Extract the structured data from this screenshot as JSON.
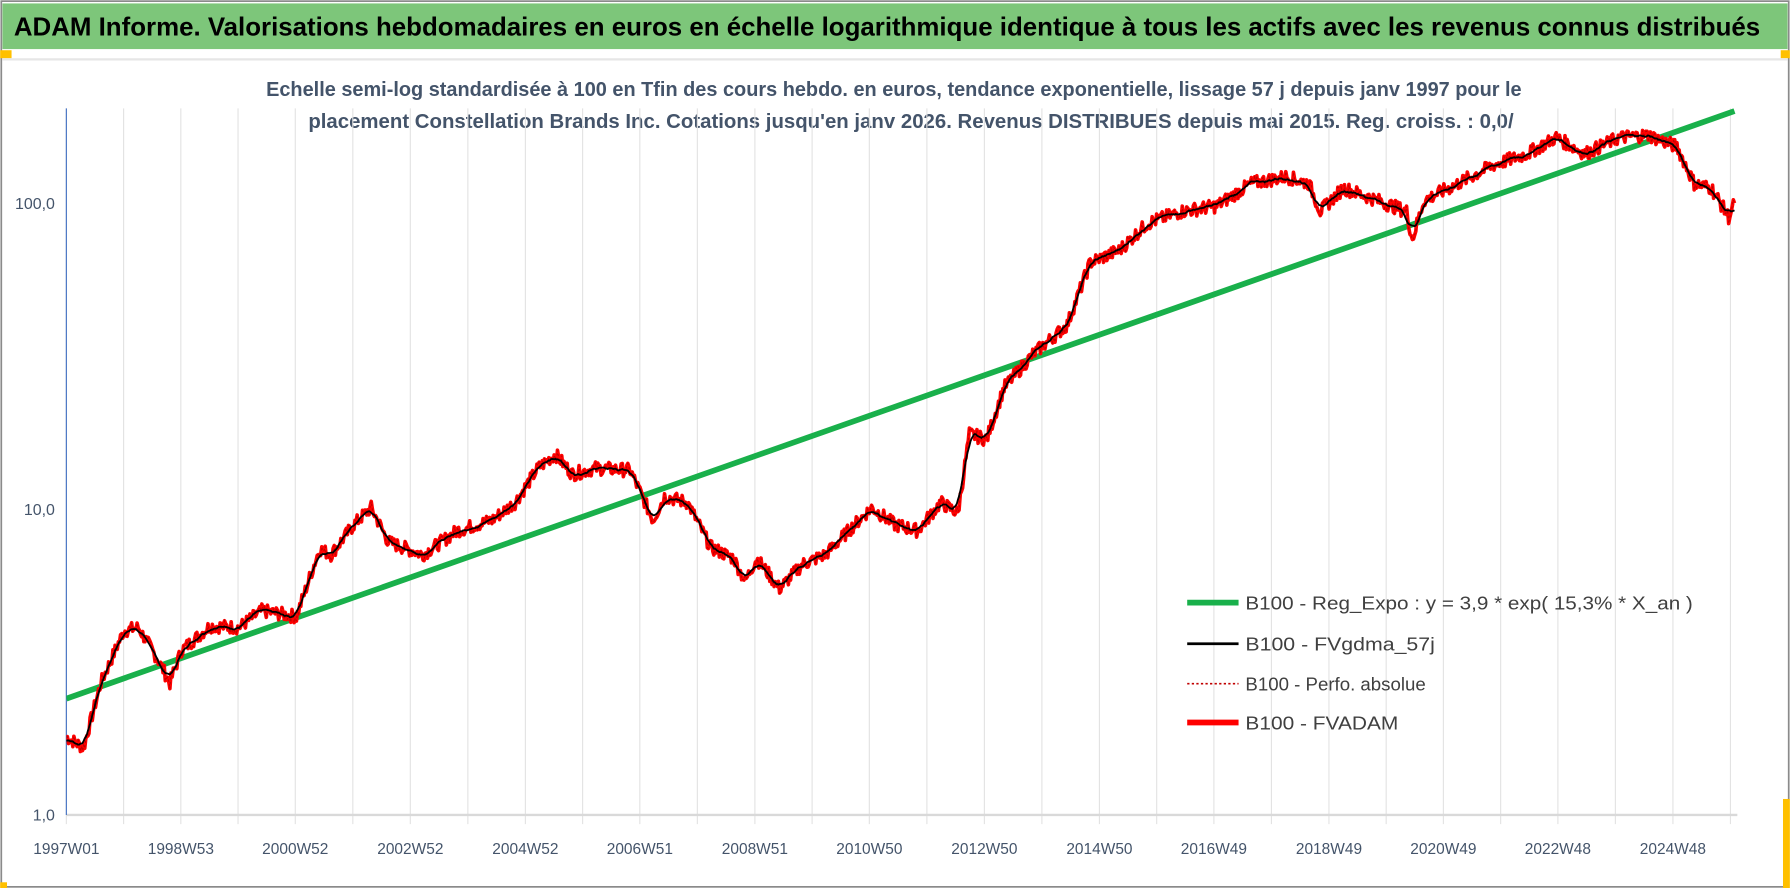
{
  "header": {
    "title": "ADAM Informe. Valorisations hebdomadaires en euros en échelle logarithmique identique à tous les actifs avec les revenus connus distribués"
  },
  "colors": {
    "title_bar": "#7dc67a",
    "trend": "#19b04b",
    "smooth": "#000000",
    "perfo": "#c00000",
    "fvadam": "#ff0000",
    "subtitle": "#44546a",
    "handles": "#ffc000"
  },
  "chart_data": {
    "type": "line",
    "title_line1": "Echelle semi-log standardisée à 100 en Tfin des cours hebdo. en euros, tendance exponentielle, lissage 57 j depuis janv 1997 pour le",
    "title_line2": "placement Constellation Brands Inc. Cotations jusqu'en janv 2026. Revenus DISTRIBUES depuis mai 2015. Reg. croiss. : 0,0/",
    "y_scale": "log",
    "ylim": [
      1,
      200
    ],
    "xlim": [
      1997.0,
      2026.05
    ],
    "grid": "vertical",
    "legend_position": "bottom-right",
    "y_ticks": [
      {
        "value": 1,
        "label": "1,0"
      },
      {
        "value": 10,
        "label": "10,0"
      },
      {
        "value": 100,
        "label": "100,0"
      }
    ],
    "x_ticks": [
      {
        "x": 1997.0,
        "label": "1997W01"
      },
      {
        "x": 1998.99,
        "label": "1998W53"
      },
      {
        "x": 2000.98,
        "label": "2000W52"
      },
      {
        "x": 2002.98,
        "label": "2002W52"
      },
      {
        "x": 2004.98,
        "label": "2004W52"
      },
      {
        "x": 2006.97,
        "label": "2006W51"
      },
      {
        "x": 2008.97,
        "label": "2008W51"
      },
      {
        "x": 2010.96,
        "label": "2010W50"
      },
      {
        "x": 2012.96,
        "label": "2012W50"
      },
      {
        "x": 2014.96,
        "label": "2014W50"
      },
      {
        "x": 2016.95,
        "label": "2016W49"
      },
      {
        "x": 2018.95,
        "label": "2018W49"
      },
      {
        "x": 2020.94,
        "label": "2020W49"
      },
      {
        "x": 2022.93,
        "label": "2022W48"
      },
      {
        "x": 2024.93,
        "label": "2024W48"
      }
    ],
    "series": [
      {
        "name": "B100 - Reg_Expo : y = 3,9 * exp( 15,3% *  X_an )",
        "x": [
          1997.0,
          2026.0
        ],
        "values": [
          2.4,
          200
        ]
      },
      {
        "name": "B100 - FVgdma_57j",
        "smoothing_of": "B100 - FVADAM"
      },
      {
        "name": "B100 - Perfo. absolue",
        "hidden_under": "B100 - FVADAM"
      },
      {
        "name": "B100 - FVADAM",
        "x": [
          1997.0,
          1997.3,
          1997.6,
          1998.0,
          1998.25,
          1998.6,
          1998.8,
          1999.0,
          1999.5,
          2000.0,
          2000.4,
          2001.0,
          2001.4,
          2001.6,
          2002.0,
          2002.3,
          2002.6,
          2003.2,
          2003.8,
          2004.4,
          2004.8,
          2005.2,
          2005.5,
          2005.8,
          2006.2,
          2006.8,
          2007.2,
          2007.4,
          2007.8,
          2008.2,
          2008.6,
          2008.8,
          2009.0,
          2009.4,
          2009.8,
          2010.2,
          2010.6,
          2011.0,
          2011.4,
          2011.8,
          2012.2,
          2012.5,
          2012.7,
          2013.0,
          2013.3,
          2013.8,
          2014.4,
          2014.8,
          2015.3,
          2015.8,
          2016.4,
          2017.0,
          2017.6,
          2018.2,
          2018.6,
          2018.8,
          2019.2,
          2019.8,
          2020.3,
          2020.4,
          2020.6,
          2021.2,
          2021.8,
          2022.4,
          2022.9,
          2023.4,
          2024.0,
          2024.5,
          2025.0,
          2025.3,
          2025.6,
          2025.9,
          2026.0
        ],
        "values": [
          1.8,
          1.66,
          2.7,
          4.0,
          4.1,
          3.2,
          2.7,
          3.45,
          4.15,
          4.1,
          4.65,
          4.45,
          7.4,
          7.1,
          8.9,
          10.1,
          7.8,
          7.1,
          8.5,
          9.2,
          10.5,
          13.6,
          15.1,
          13.0,
          13.6,
          13.4,
          9.2,
          11.0,
          10.5,
          7.5,
          6.9,
          5.8,
          6.9,
          5.5,
          6.6,
          7.1,
          8.5,
          10.1,
          8.9,
          8.5,
          10.5,
          9.7,
          17.6,
          16.9,
          24.9,
          32,
          40,
          64,
          70,
          86,
          94,
          98,
          116,
          122,
          116,
          94,
          112,
          102,
          94,
          76,
          102,
          116,
          133,
          145,
          164,
          145,
          164,
          167,
          153,
          116,
          112,
          90,
          100
        ]
      }
    ]
  }
}
